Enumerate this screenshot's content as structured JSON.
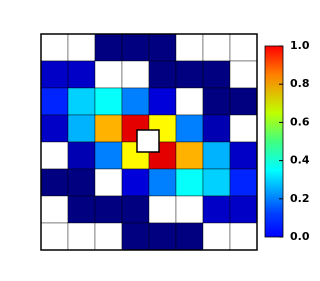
{
  "chart_data": {
    "type": "heatmap",
    "colormap": "jet",
    "z": [
      [
        null,
        null,
        0,
        0,
        0,
        null,
        null,
        null
      ],
      [
        0.07,
        0.07,
        null,
        null,
        0,
        0,
        0,
        null
      ],
      [
        0.16,
        0.33,
        0.38,
        0.25,
        0.09,
        null,
        0,
        0
      ],
      [
        0.07,
        0.3,
        0.7,
        0.9,
        0.63,
        0.25,
        0.05,
        null
      ],
      [
        null,
        0.05,
        0.25,
        0.63,
        0.9,
        0.7,
        0.3,
        0.07
      ],
      [
        0,
        0,
        null,
        0.09,
        0.25,
        0.38,
        0.33,
        0.16
      ],
      [
        null,
        0,
        0,
        0,
        null,
        null,
        0.07,
        0.07
      ],
      [
        null,
        null,
        null,
        0,
        0,
        0,
        null,
        null
      ]
    ],
    "clim": [
      0,
      1
    ],
    "cticks": [
      {
        "value": 0,
        "label": "0.0"
      },
      0.2,
      0.4,
      0.6,
      0.8,
      {
        "value": 1,
        "label": "1.0"
      }
    ]
  }
}
